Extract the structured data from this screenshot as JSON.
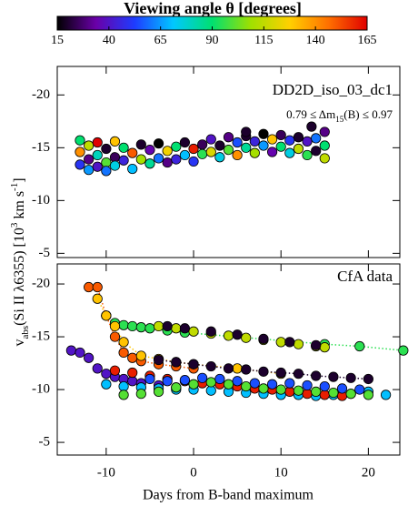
{
  "colorbar": {
    "title": "Viewing angle θ   [degrees]",
    "lim": [
      15,
      165
    ],
    "ticks": [
      15,
      40,
      65,
      90,
      115,
      140,
      165
    ],
    "colors": [
      "#000000",
      "#6a00a8",
      "#1e3cff",
      "#00c8ff",
      "#00e070",
      "#a0e000",
      "#ffd000",
      "#ff7000",
      "#e00000"
    ]
  },
  "ylabel": [
    "v",
    "abs",
    "(Si II λ6355)   [10",
    "3",
    " km s",
    "-1",
    "]"
  ],
  "xlabel": "Days from B-band maximum",
  "chart_data": [
    {
      "type": "scatter",
      "annotation": "DD2D_iso_03_dc1",
      "annotation2": [
        "0.79 ≤ Δm",
        "15",
        "(B) ≤ 0.97"
      ],
      "xlim": [
        -15.6,
        23.6
      ],
      "xticks": [
        -10,
        0,
        10,
        20
      ],
      "ylim": [
        -4.6,
        -22.7
      ],
      "yticks": [
        -20,
        -15,
        -10,
        -5
      ],
      "points": {
        "x": [
          -13,
          -13,
          -13,
          -12,
          -12,
          -12,
          -11,
          -11,
          -11,
          -10,
          -10,
          -10,
          -9,
          -9,
          -9,
          -8,
          -8,
          -7,
          -7,
          -6,
          -6,
          -5,
          -5,
          -4,
          -4,
          -3,
          -3,
          -2,
          -2,
          -1,
          -1,
          0,
          0,
          1,
          1,
          2,
          2,
          3,
          3,
          4,
          4,
          5,
          5,
          6,
          6,
          7,
          7,
          8,
          8,
          9,
          9,
          10,
          10,
          11,
          11,
          12,
          12,
          13,
          13,
          14,
          14,
          15,
          15,
          15,
          13.5,
          6
        ],
        "y": [
          -15.7,
          -14.6,
          -13.4,
          -15.2,
          -13.9,
          -12.9,
          -15.5,
          -14.3,
          -13.2,
          -14.9,
          -13.6,
          -12.8,
          -15.6,
          -14.1,
          -13.3,
          -15.0,
          -13.8,
          -14.5,
          -13.0,
          -15.3,
          -13.9,
          -14.8,
          -13.5,
          -15.4,
          -14.0,
          -14.7,
          -13.6,
          -15.1,
          -13.9,
          -15.5,
          -14.3,
          -14.9,
          -13.7,
          -15.3,
          -14.4,
          -15.8,
          -14.6,
          -15.2,
          -14.1,
          -16.0,
          -14.8,
          -15.5,
          -14.3,
          -16.1,
          -15.0,
          -15.6,
          -14.5,
          -16.3,
          -15.2,
          -15.8,
          -14.6,
          -16.2,
          -15.1,
          -15.7,
          -14.5,
          -16.0,
          -14.9,
          -15.6,
          -14.3,
          -15.9,
          -14.7,
          -16.5,
          -15.2,
          -14.0,
          -17.0,
          -16.5
        ],
        "angle": [
          90,
          140,
          50,
          115,
          30,
          65,
          165,
          80,
          40,
          20,
          100,
          60,
          130,
          25,
          75,
          90,
          45,
          150,
          70,
          20,
          110,
          35,
          85,
          15,
          60,
          125,
          30,
          90,
          45,
          20,
          70,
          160,
          50,
          25,
          95,
          40,
          120,
          20,
          75,
          30,
          100,
          55,
          140,
          20,
          85,
          45,
          110,
          15,
          65,
          130,
          35,
          25,
          90,
          50,
          75,
          20,
          115,
          40,
          95,
          60,
          20,
          30,
          90,
          115,
          20,
          20
        ]
      }
    },
    {
      "type": "scatter",
      "annotation": "CfA data",
      "xlim": [
        -15.6,
        23.6
      ],
      "xticks": [
        -10,
        0,
        10,
        20
      ],
      "ylim": [
        -3.8,
        -21.9
      ],
      "yticks": [
        -20,
        -15,
        -10,
        -5
      ],
      "tracks": [
        {
          "angle": 95,
          "dotted": true,
          "x": [
            -10,
            -9,
            -8,
            -7,
            -6,
            -5,
            -3,
            -1,
            15,
            19,
            24
          ],
          "y": [
            -17,
            -16.3,
            -16.1,
            -16.0,
            -15.9,
            -15.8,
            -15.6,
            -15.4,
            -14.3,
            -14.1,
            -13.7
          ]
        },
        {
          "angle": 115,
          "dotted": false,
          "x": [
            -4,
            -2,
            0,
            2,
            4,
            6,
            8,
            10,
            12,
            14,
            15
          ],
          "y": [
            -16,
            -15.8,
            -15.5,
            -15.3,
            -15.1,
            -14.9,
            -14.7,
            -14.5,
            -14.3,
            -14.1,
            -14.0
          ]
        },
        {
          "angle": 150,
          "dotted": true,
          "x": [
            -12,
            -11,
            -10,
            -9,
            -8,
            -7,
            -6,
            -4,
            -2,
            0
          ],
          "y": [
            -19.7,
            -19.7,
            -17,
            -15,
            -13.5,
            -13,
            -12.7,
            -12.4,
            -12.2,
            -12
          ]
        },
        {
          "angle": 130,
          "dotted": true,
          "x": [
            -11,
            -10,
            -9,
            -8,
            -6,
            -4,
            -2,
            0,
            5,
            10
          ],
          "y": [
            -18.6,
            -17,
            -16,
            -14.5,
            -13.2,
            -12.9,
            -12.6,
            -12.4,
            -12.0,
            -11.5
          ]
        },
        {
          "angle": 20,
          "dotted": true,
          "x": [
            -4,
            -2,
            0,
            2,
            4,
            6,
            8,
            10,
            12,
            14,
            16,
            18,
            20
          ],
          "y": [
            -12.8,
            -12.6,
            -12.4,
            -12.2,
            -12.0,
            -11.9,
            -11.7,
            -11.6,
            -11.5,
            -11.3,
            -11.2,
            -11.1,
            -11.0
          ]
        },
        {
          "angle": 40,
          "dotted": false,
          "x": [
            -14,
            -13,
            -12,
            -11,
            -10,
            -9,
            -8,
            -7,
            -6,
            -4,
            -2
          ],
          "y": [
            -13.7,
            -13.5,
            -13.0,
            -12.0,
            -11.5,
            -11.2,
            -11,
            -10.8,
            -10.6,
            -10.4,
            -10.2
          ]
        },
        {
          "angle": 70,
          "dotted": false,
          "x": [
            -10,
            -8,
            -6,
            -4,
            -2,
            0,
            2,
            4,
            6,
            8,
            10,
            12,
            14,
            16,
            18,
            20,
            22
          ],
          "y": [
            -10.5,
            -10.3,
            -10.2,
            -10.1,
            -10.0,
            -10.0,
            -9.9,
            -9.8,
            -9.7,
            -9.6,
            -9.5,
            -9.5,
            -9.4,
            -9.5,
            -9.6,
            -9.8,
            -9.5
          ]
        },
        {
          "angle": 160,
          "dotted": false,
          "x": [
            -9,
            -7,
            -5,
            -3,
            -1,
            1,
            3,
            5,
            7,
            9,
            11,
            13,
            15,
            17
          ],
          "y": [
            -11.8,
            -11.6,
            -11.3,
            -11.0,
            -10.8,
            -10.6,
            -10.5,
            -10.3,
            -10.1,
            -10.0,
            -9.8,
            -9.6,
            -9.5,
            -9.4
          ]
        },
        {
          "angle": 100,
          "dotted": false,
          "x": [
            -8,
            -6,
            -4,
            -2,
            0,
            2,
            4,
            6,
            8,
            10,
            12,
            14,
            16,
            18,
            20
          ],
          "y": [
            -9.5,
            -9.6,
            -9.8,
            -10.2,
            -10.5,
            -10.7,
            -10.5,
            -10.3,
            -10.1,
            -10.0,
            -9.9,
            -9.8,
            -9.7,
            -9.6,
            -9.5
          ]
        },
        {
          "angle": 20,
          "dotted": false,
          "x": [
            -3,
            -1,
            2,
            5,
            8,
            11,
            14
          ],
          "y": [
            -16,
            -15.8,
            -15.5,
            -15.2,
            -14.8,
            -14.5,
            -14.2
          ]
        },
        {
          "angle": 55,
          "dotted": false,
          "x": [
            -5,
            -3,
            -1,
            1,
            3,
            5,
            7,
            9,
            11,
            13,
            15,
            17,
            19
          ],
          "y": [
            -11,
            -10.8,
            -10.9,
            -11.1,
            -11.0,
            -10.8,
            -10.6,
            -10.5,
            -10.6,
            -10.4,
            -10.3,
            -10.1,
            -10.0
          ]
        }
      ]
    }
  ]
}
